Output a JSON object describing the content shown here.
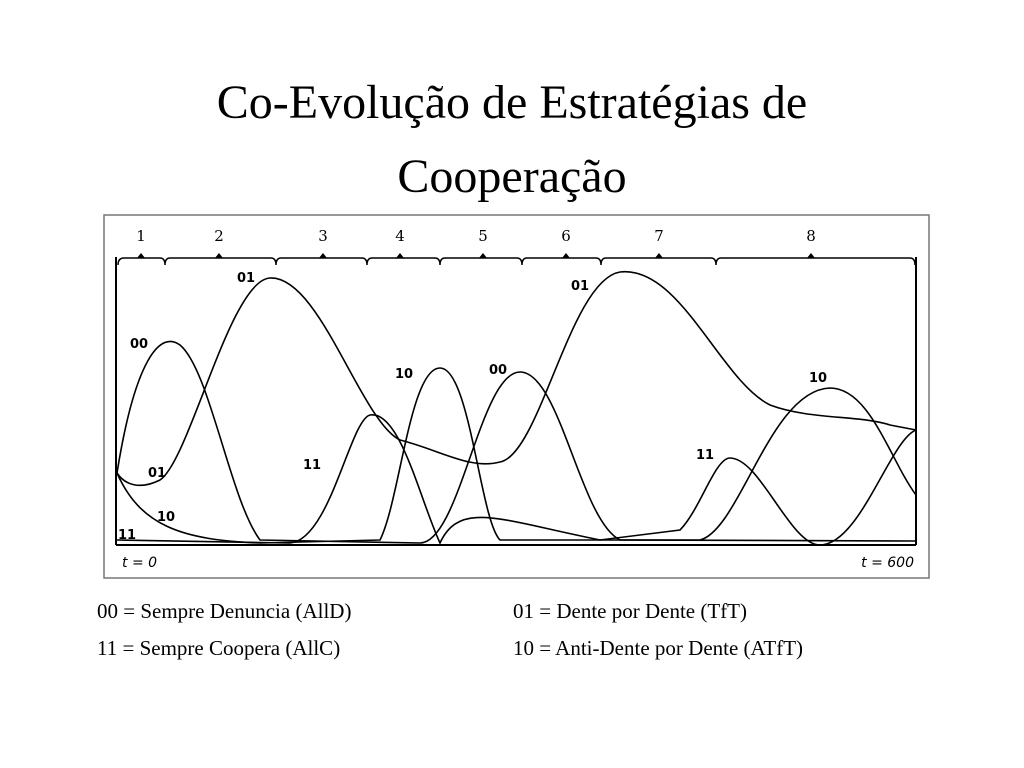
{
  "title_lines": [
    "Co-Evolução de Estratégias de",
    "Cooperação"
  ],
  "figure": {
    "phases": [
      "1",
      "2",
      "3",
      "4",
      "5",
      "6",
      "7",
      "8"
    ],
    "curve_labels": [
      "01",
      "00",
      "01",
      "10",
      "11",
      "10",
      "11",
      "00",
      "01",
      "11",
      "10"
    ],
    "time_start": "t = 0",
    "time_end": "t = 600"
  },
  "legend": [
    [
      "00 = Sempre Denuncia (AllD)",
      "01 = Dente por Dente (TfT)"
    ],
    [
      "11 = Sempre Coopera (AllC)",
      "10 = Anti-Dente por Dente (ATfT)"
    ]
  ]
}
